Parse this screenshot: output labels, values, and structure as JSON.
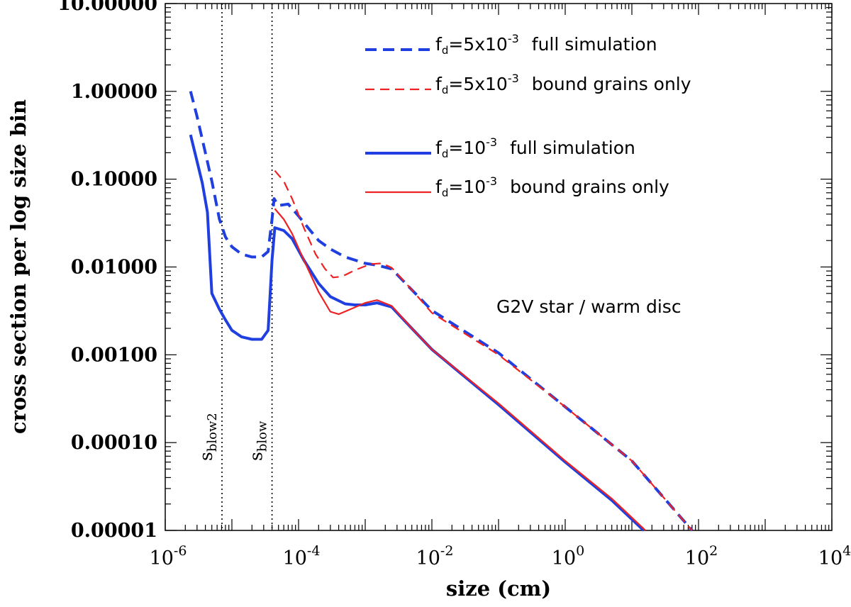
{
  "chart_data": {
    "type": "line",
    "title": "",
    "xlabel": "size (cm)",
    "ylabel": "cross section per log size bin",
    "x_scale": "log",
    "y_scale": "log",
    "xlim": [
      1e-06,
      10000
    ],
    "ylim": [
      1e-05,
      10
    ],
    "grid": false,
    "legend_position": "top-right",
    "x_ticks": [
      {
        "value": 1e-06,
        "base": "10",
        "exp": "-6"
      },
      {
        "value": 0.0001,
        "base": "10",
        "exp": "-4"
      },
      {
        "value": 0.01,
        "base": "10",
        "exp": "-2"
      },
      {
        "value": 1,
        "base": "10",
        "exp": "0"
      },
      {
        "value": 100,
        "base": "10",
        "exp": "2"
      },
      {
        "value": 10000,
        "base": "10",
        "exp": "4"
      }
    ],
    "y_ticks": [
      {
        "value": 10,
        "label": "10.00000"
      },
      {
        "value": 1,
        "label": "1.00000"
      },
      {
        "value": 0.1,
        "label": "0.10000"
      },
      {
        "value": 0.01,
        "label": "0.01000"
      },
      {
        "value": 0.001,
        "label": "0.00100"
      },
      {
        "value": 0.0001,
        "label": "0.00010"
      },
      {
        "value": 1e-05,
        "label": "0.00001"
      }
    ],
    "vertical_lines": [
      {
        "x": 7.1e-06,
        "label": "s",
        "sub": "blow2",
        "style": "dotted"
      },
      {
        "x": 4e-05,
        "label": "s",
        "sub": "blow",
        "style": "dotted"
      }
    ],
    "annotation": "G2V star / warm disc",
    "series": [
      {
        "name": "fd=5x10-3 full simulation",
        "legend": {
          "prefix": "f",
          "sub": "d",
          "mid": "=5x10",
          "exp": "-3",
          "suffix": "full simulation"
        },
        "color": "#1f3fe0",
        "dash": "dashed",
        "width": "thick",
        "points": [
          [
            2.4e-06,
            1.0
          ],
          [
            3e-06,
            0.52
          ],
          [
            4e-06,
            0.2
          ],
          [
            5e-06,
            0.095
          ],
          [
            6.5e-06,
            0.035
          ],
          [
            8e-06,
            0.022
          ],
          [
            1e-05,
            0.017
          ],
          [
            1.4e-05,
            0.014
          ],
          [
            2e-05,
            0.013
          ],
          [
            2.8e-05,
            0.013
          ],
          [
            3.5e-05,
            0.015
          ],
          [
            4e-05,
            0.035
          ],
          [
            4.3e-05,
            0.06
          ],
          [
            5e-05,
            0.05
          ],
          [
            7e-05,
            0.052
          ],
          [
            0.0001,
            0.038
          ],
          [
            0.00015,
            0.026
          ],
          [
            0.0002,
            0.02
          ],
          [
            0.0003,
            0.016
          ],
          [
            0.0005,
            0.013
          ],
          [
            0.001,
            0.011
          ],
          [
            0.0015,
            0.0105
          ],
          [
            0.0025,
            0.0095
          ],
          [
            0.005,
            0.0055
          ],
          [
            0.01,
            0.0032
          ],
          [
            0.1,
            0.00105
          ],
          [
            1.0,
            0.000255
          ],
          [
            10,
            6.2e-05
          ],
          [
            80,
            1e-05
          ]
        ]
      },
      {
        "name": "fd=5x10-3 bound grains only",
        "legend": {
          "prefix": "f",
          "sub": "d",
          "mid": "=5x10",
          "exp": "-3",
          "suffix": "bound grains only"
        },
        "color": "#ee2222",
        "dash": "dashed",
        "width": "thin",
        "points": [
          [
            4.4e-05,
            0.125
          ],
          [
            6e-05,
            0.095
          ],
          [
            8e-05,
            0.06
          ],
          [
            0.00012,
            0.028
          ],
          [
            0.00018,
            0.014
          ],
          [
            0.00025,
            0.0095
          ],
          [
            0.00033,
            0.0076
          ],
          [
            0.00045,
            0.0078
          ],
          [
            0.0007,
            0.0092
          ],
          [
            0.0012,
            0.0108
          ],
          [
            0.0018,
            0.011
          ],
          [
            0.0025,
            0.0098
          ],
          [
            0.005,
            0.0055
          ],
          [
            0.01,
            0.003
          ],
          [
            0.1,
            0.001
          ],
          [
            1.0,
            0.000255
          ],
          [
            10,
            6.2e-05
          ],
          [
            80,
            1e-05
          ]
        ]
      },
      {
        "name": "fd=10-3 full simulation",
        "legend": {
          "prefix": "f",
          "sub": "d",
          "mid": "=10",
          "exp": "-3",
          "suffix": "full simulation"
        },
        "color": "#1f3fe0",
        "dash": "solid",
        "width": "thick",
        "points": [
          [
            2.4e-06,
            0.32
          ],
          [
            3e-06,
            0.16
          ],
          [
            3.6e-06,
            0.09
          ],
          [
            4.3e-06,
            0.042
          ],
          [
            5e-06,
            0.005
          ],
          [
            6.5e-06,
            0.0033
          ],
          [
            8e-06,
            0.0025
          ],
          [
            1e-05,
            0.0019
          ],
          [
            1.4e-05,
            0.0016
          ],
          [
            2e-05,
            0.0015
          ],
          [
            2.8e-05,
            0.0015
          ],
          [
            3.5e-05,
            0.0019
          ],
          [
            4e-05,
            0.012
          ],
          [
            4.4e-05,
            0.028
          ],
          [
            6e-05,
            0.026
          ],
          [
            8e-05,
            0.021
          ],
          [
            0.00012,
            0.012
          ],
          [
            0.0002,
            0.0065
          ],
          [
            0.0003,
            0.0046
          ],
          [
            0.0005,
            0.0038
          ],
          [
            0.0007,
            0.0037
          ],
          [
            0.001,
            0.0037
          ],
          [
            0.0015,
            0.0039
          ],
          [
            0.0025,
            0.0035
          ],
          [
            0.005,
            0.002
          ],
          [
            0.01,
            0.00115
          ],
          [
            0.1,
            0.00027
          ],
          [
            1.0,
            6e-05
          ],
          [
            5.0,
            2.2e-05
          ],
          [
            15,
            1e-05
          ]
        ]
      },
      {
        "name": "fd=10-3 bound grains only",
        "legend": {
          "prefix": "f",
          "sub": "d",
          "mid": "=10",
          "exp": "-3",
          "suffix": "bound grains only"
        },
        "color": "#ee2222",
        "dash": "solid",
        "width": "thin",
        "points": [
          [
            4.4e-05,
            0.046
          ],
          [
            6e-05,
            0.035
          ],
          [
            8e-05,
            0.024
          ],
          [
            0.00012,
            0.012
          ],
          [
            0.0002,
            0.0052
          ],
          [
            0.0003,
            0.0031
          ],
          [
            0.0004,
            0.0029
          ],
          [
            0.0006,
            0.0033
          ],
          [
            0.001,
            0.0039
          ],
          [
            0.0015,
            0.0042
          ],
          [
            0.0025,
            0.0036
          ],
          [
            0.005,
            0.002
          ],
          [
            0.01,
            0.00115
          ],
          [
            0.1,
            0.00028
          ],
          [
            1.0,
            6.2e-05
          ],
          [
            5.0,
            2.3e-05
          ],
          [
            16,
            1e-05
          ]
        ]
      }
    ]
  }
}
